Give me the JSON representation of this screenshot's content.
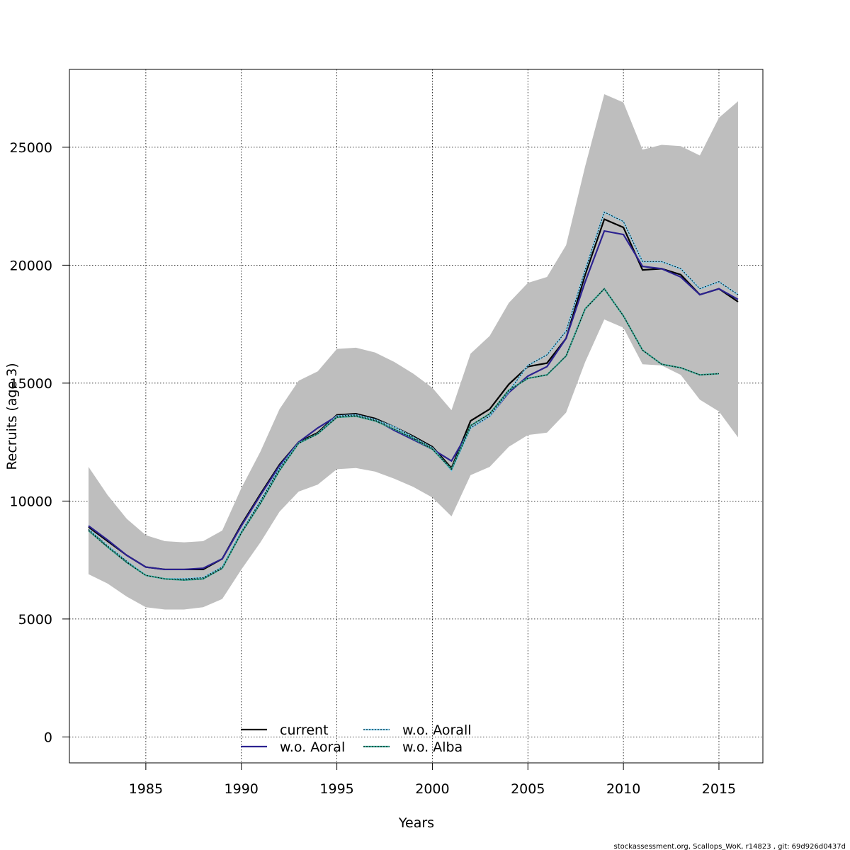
{
  "chart_data": {
    "type": "line",
    "title": "",
    "xlabel": "Years",
    "ylabel": "Recruits (age 3)",
    "xlim": [
      1981,
      2017.3
    ],
    "ylim": [
      -1100,
      28300
    ],
    "x_ticks": [
      1985,
      1990,
      1995,
      2000,
      2005,
      2010,
      2015
    ],
    "y_ticks": [
      0,
      5000,
      10000,
      15000,
      20000,
      25000
    ],
    "grid": true,
    "legend_position": "bottom-center",
    "x": [
      1982,
      1983,
      1984,
      1985,
      1986,
      1987,
      1988,
      1989,
      1990,
      1991,
      1992,
      1993,
      1994,
      1995,
      1996,
      1997,
      1998,
      1999,
      2000,
      2001,
      2002,
      2003,
      2004,
      2005,
      2006,
      2007,
      2008,
      2009,
      2010,
      2011,
      2012,
      2013,
      2014,
      2015,
      2016
    ],
    "confidence_band": {
      "color": "#bebebe",
      "upper": [
        11450,
        10250,
        9250,
        8550,
        8300,
        8250,
        8300,
        8750,
        10550,
        12100,
        13900,
        15100,
        15500,
        16450,
        16500,
        16300,
        15900,
        15400,
        14800,
        13850,
        16250,
        17000,
        18400,
        19250,
        19500,
        20850,
        24200,
        27250,
        26900,
        24900,
        25100,
        25050,
        24650,
        26250,
        26950
      ],
      "lower": [
        6900,
        6500,
        5950,
        5500,
        5400,
        5400,
        5500,
        5850,
        7100,
        8250,
        9550,
        10400,
        10700,
        11350,
        11400,
        11250,
        10950,
        10600,
        10150,
        9350,
        11100,
        11450,
        12300,
        12800,
        12900,
        13750,
        15900,
        17700,
        17350,
        15800,
        15750,
        15350,
        14300,
        13800,
        12700
      ]
    },
    "series": [
      {
        "name": "current",
        "color": "#000000",
        "dash": "solid",
        "values": [
          8900,
          8300,
          7700,
          7200,
          7100,
          7100,
          7100,
          7550,
          9000,
          10300,
          11550,
          12500,
          12900,
          13650,
          13700,
          13500,
          13150,
          12750,
          12300,
          11400,
          13400,
          13900,
          14950,
          15700,
          15850,
          16900,
          19600,
          21950,
          21600,
          19800,
          19850,
          19600,
          18750,
          19000,
          18450
        ]
      },
      {
        "name": "w.o. Aoral",
        "color": "#2c2290",
        "dash": "solid",
        "values": [
          8950,
          8350,
          7700,
          7200,
          7100,
          7100,
          7150,
          7550,
          8950,
          10250,
          11500,
          12500,
          13100,
          13600,
          13650,
          13450,
          13000,
          12600,
          12200,
          11700,
          13100,
          13600,
          14600,
          15300,
          15700,
          16900,
          19300,
          21450,
          21300,
          19950,
          19850,
          19500,
          18750,
          19000,
          18550
        ]
      },
      {
        "name": "w.o. Aorall",
        "color": "#7fcff0",
        "dash": "dotted",
        "values": [
          8800,
          8100,
          7450,
          6850,
          6700,
          6700,
          6750,
          7200,
          8700,
          10000,
          11400,
          12450,
          12850,
          13600,
          13650,
          13450,
          13150,
          12700,
          12250,
          11300,
          13100,
          13600,
          14650,
          15750,
          16200,
          17200,
          19800,
          22250,
          21850,
          20150,
          20150,
          19850,
          19000,
          19300,
          18750
        ]
      },
      {
        "name": "w.o. Alba",
        "color": "#3aaa96",
        "dash": "dotted",
        "values": [
          8750,
          8050,
          7400,
          6850,
          6700,
          6650,
          6700,
          7150,
          8650,
          9900,
          11300,
          12450,
          12850,
          13550,
          13600,
          13400,
          13050,
          12650,
          12200,
          11350,
          13200,
          13700,
          14700,
          15200,
          15350,
          16150,
          18150,
          19000,
          17850,
          16400,
          15800,
          15650,
          15350,
          15400,
          null
        ]
      }
    ]
  },
  "footnote": "stockassessment.org, Scallops_WoK, r14823 , git: 69d926d0437d"
}
